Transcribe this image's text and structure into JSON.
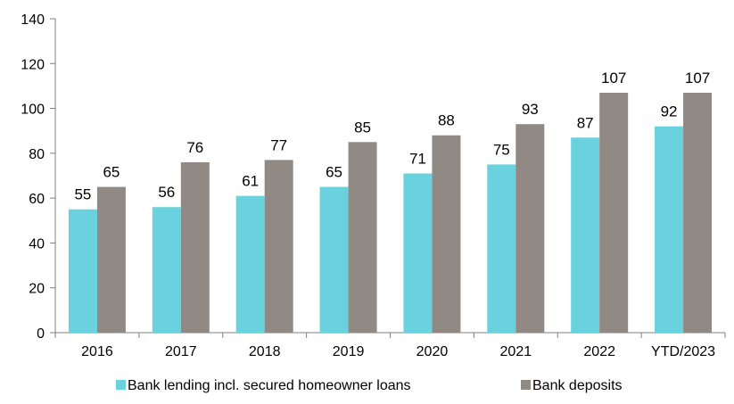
{
  "chart_data": {
    "type": "bar",
    "title": "",
    "xlabel": "",
    "ylabel": "",
    "ylim": [
      0,
      140
    ],
    "yticks": [
      0,
      20,
      40,
      60,
      80,
      100,
      120,
      140
    ],
    "grid": false,
    "legend_position": "bottom",
    "categories": [
      "2016",
      "2017",
      "2018",
      "2019",
      "2020",
      "2021",
      "2022",
      "YTD/2023"
    ],
    "series": [
      {
        "name": "Bank lending incl. secured homeowner loans",
        "color": "#6AD1DE",
        "values": [
          55,
          56,
          61,
          65,
          71,
          75,
          87,
          92
        ]
      },
      {
        "name": "Bank deposits",
        "color": "#918A84",
        "values": [
          65,
          76,
          77,
          85,
          88,
          93,
          107,
          107
        ]
      }
    ]
  }
}
